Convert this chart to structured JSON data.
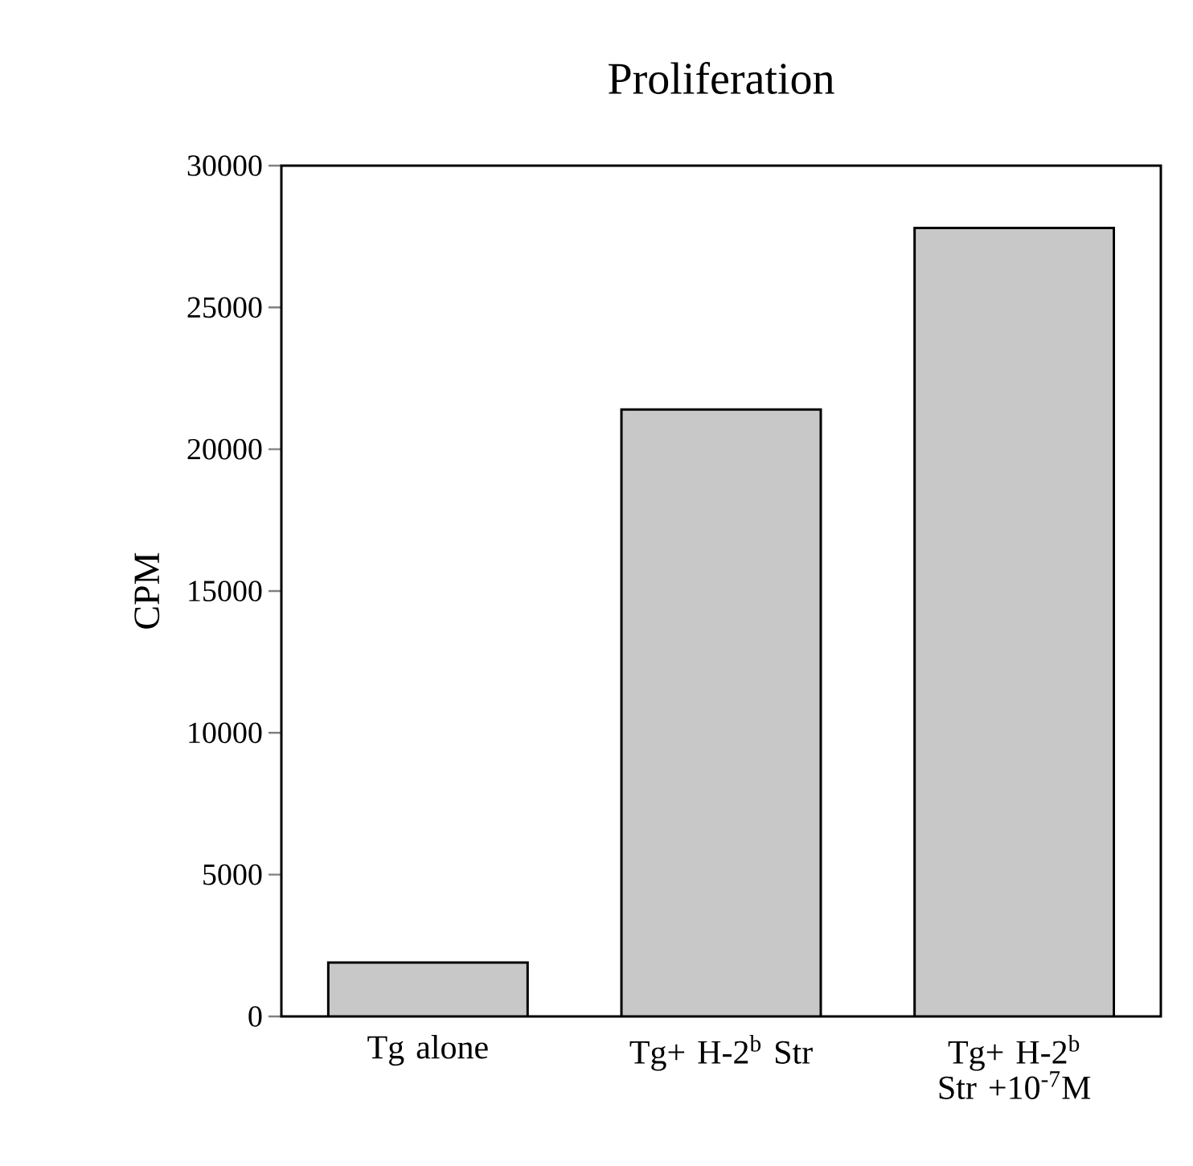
{
  "chart_data": {
    "type": "bar",
    "title": "Proliferation",
    "ylabel": "CPM",
    "categories": [
      "Tg alone",
      "Tg+ H-2$^{b}$ Str",
      "Tg+ H-2$^{b}$ Str +10$^{-7}$M"
    ],
    "values": [
      1900,
      21400,
      27800
    ],
    "color": "#c8c8c8",
    "ylim": [
      0,
      30000
    ],
    "yticks": [
      0,
      5000,
      10000,
      15000,
      20000,
      25000,
      30000
    ],
    "grid": false
  }
}
